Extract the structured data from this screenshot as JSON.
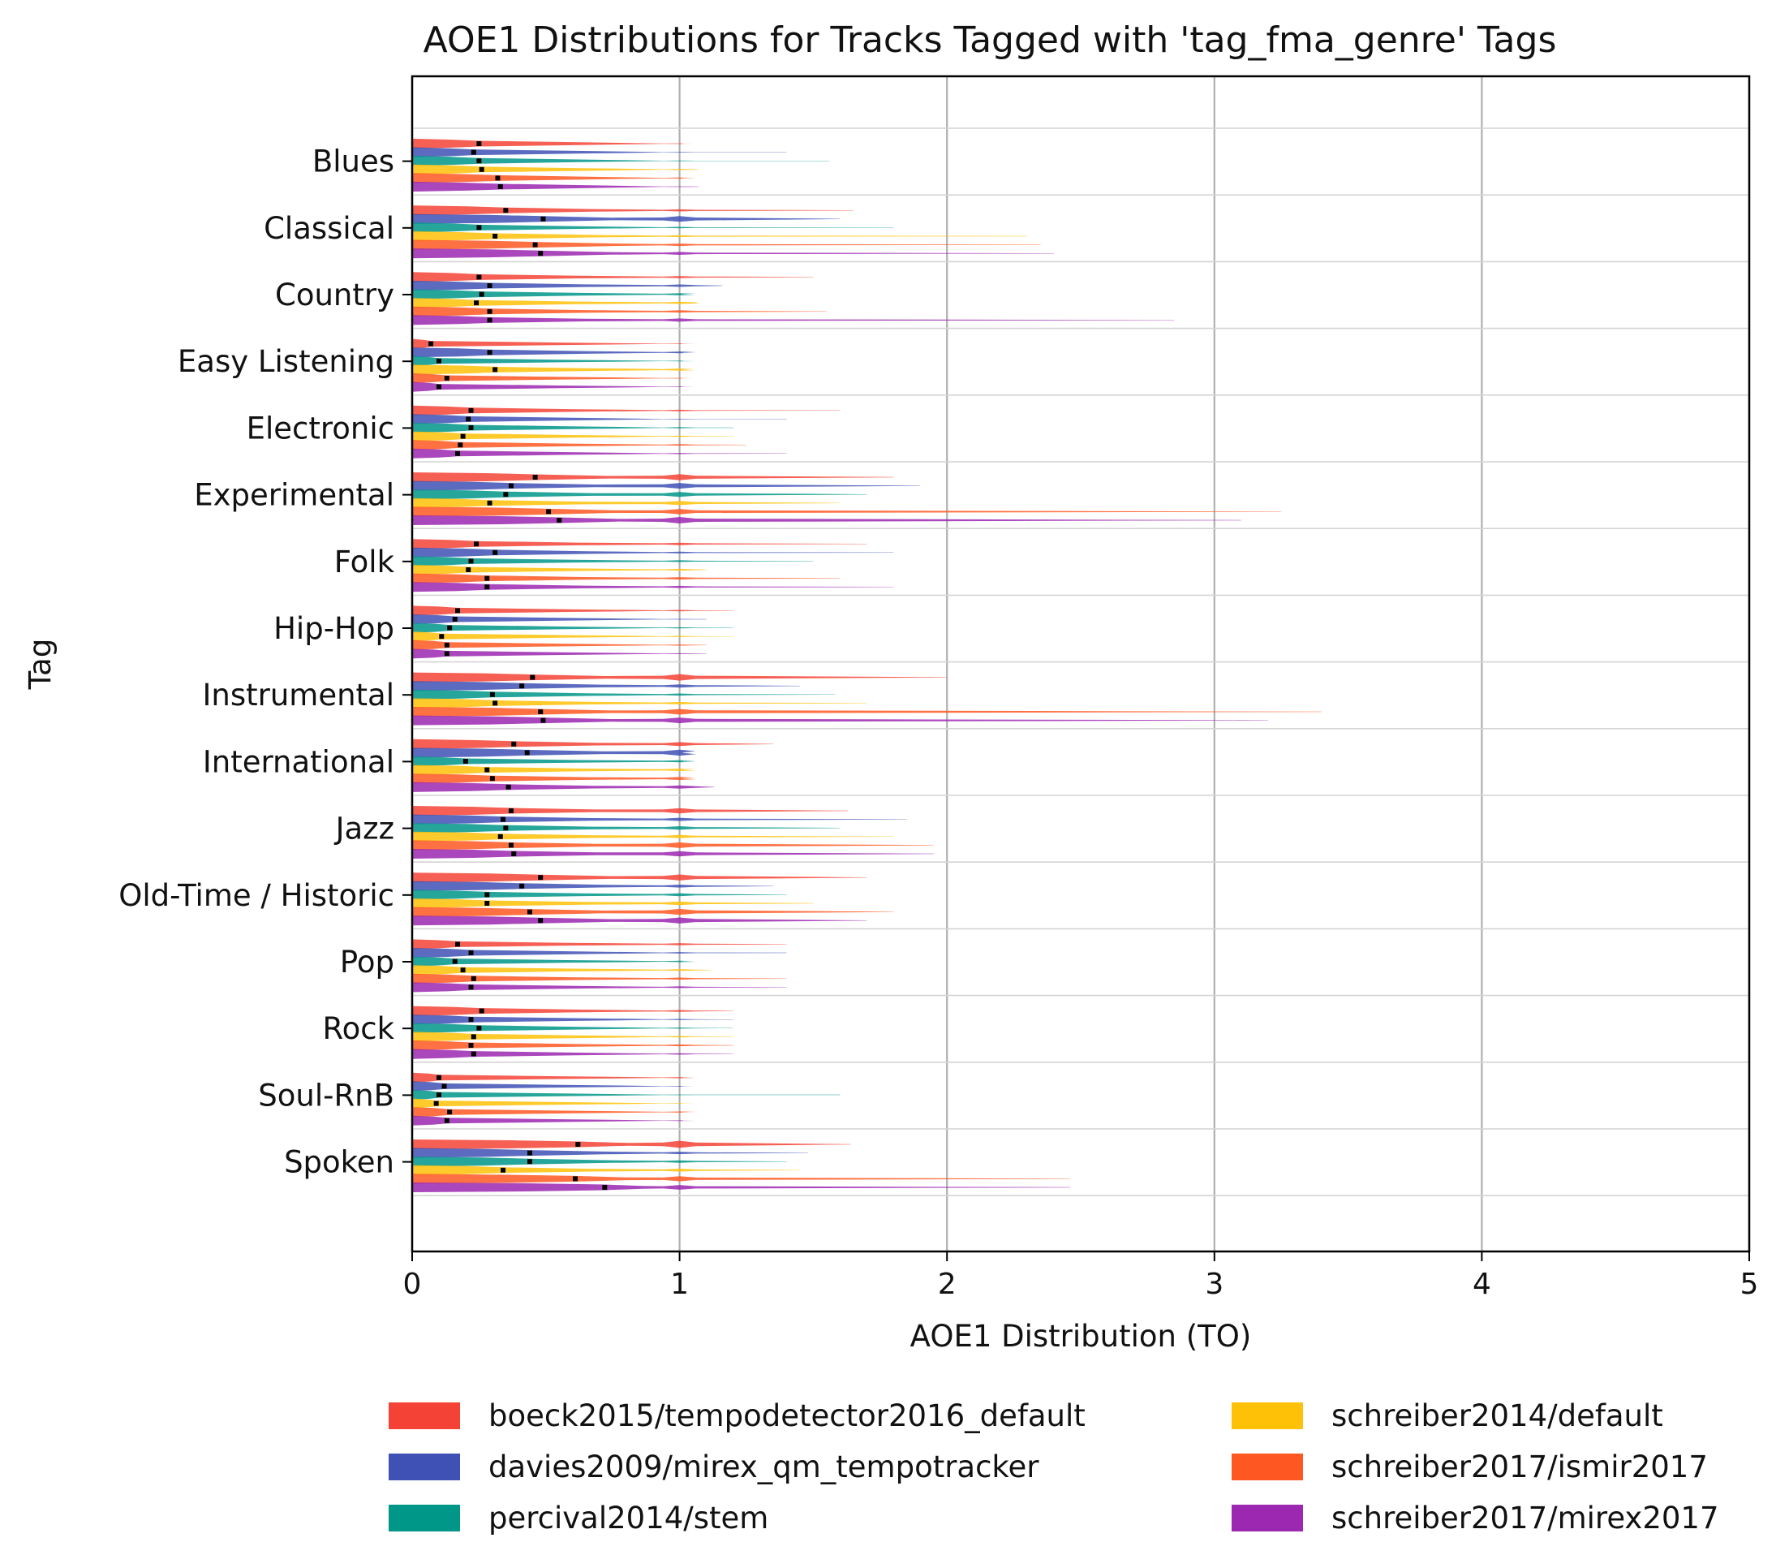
{
  "chart_data": {
    "type": "violin",
    "orientation": "horizontal",
    "title": "AOE1 Distributions for Tracks Tagged with 'tag_fma_genre' Tags",
    "xlabel": "AOE1 Distribution (TO)",
    "ylabel": "Tag",
    "xlim": [
      0,
      5
    ],
    "xticks": [
      "0",
      "1",
      "2",
      "3",
      "4",
      "5"
    ],
    "grid": "x",
    "legend_position": "bottom",
    "series": [
      {
        "name": "boeck2015/tempodetector2016_default",
        "color": "#F44336"
      },
      {
        "name": "davies2009/mirex_qm_tempotracker",
        "color": "#3F51B5"
      },
      {
        "name": "percival2014/stem",
        "color": "#009688"
      },
      {
        "name": "schreiber2014/default",
        "color": "#FFC107"
      },
      {
        "name": "schreiber2017/ismir2017",
        "color": "#FF5722"
      },
      {
        "name": "schreiber2017/mirex2017",
        "color": "#9C27B0"
      }
    ],
    "categories": [
      "Blues",
      "Classical",
      "Country",
      "Easy Listening",
      "Electronic",
      "Experimental",
      "Folk",
      "Hip-Hop",
      "Instrumental",
      "International",
      "Jazz",
      "Old-Time / Historic",
      "Pop",
      "Rock",
      "Soul-RnB",
      "Spoken"
    ],
    "medians": [
      [
        0.25,
        0.23,
        0.25,
        0.26,
        0.32,
        0.33
      ],
      [
        0.35,
        0.49,
        0.25,
        0.31,
        0.46,
        0.48
      ],
      [
        0.25,
        0.29,
        0.26,
        0.24,
        0.29,
        0.29
      ],
      [
        0.07,
        0.29,
        0.1,
        0.31,
        0.13,
        0.1
      ],
      [
        0.22,
        0.21,
        0.22,
        0.19,
        0.18,
        0.17
      ],
      [
        0.46,
        0.37,
        0.35,
        0.29,
        0.51,
        0.55
      ],
      [
        0.24,
        0.31,
        0.22,
        0.21,
        0.28,
        0.28
      ],
      [
        0.17,
        0.16,
        0.14,
        0.11,
        0.13,
        0.13
      ],
      [
        0.45,
        0.41,
        0.3,
        0.31,
        0.48,
        0.49
      ],
      [
        0.38,
        0.43,
        0.2,
        0.28,
        0.3,
        0.36
      ],
      [
        0.37,
        0.34,
        0.35,
        0.33,
        0.37,
        0.38
      ],
      [
        0.48,
        0.41,
        0.28,
        0.28,
        0.44,
        0.48
      ],
      [
        0.17,
        0.22,
        0.16,
        0.19,
        0.23,
        0.22
      ],
      [
        0.26,
        0.22,
        0.25,
        0.23,
        0.22,
        0.23
      ],
      [
        0.1,
        0.12,
        0.1,
        0.09,
        0.14,
        0.13
      ],
      [
        0.62,
        0.44,
        0.44,
        0.34,
        0.61,
        0.72
      ]
    ],
    "maxima": [
      [
        1.0,
        1.4,
        1.56,
        1.07,
        1.03,
        1.07
      ],
      [
        1.65,
        1.6,
        1.8,
        2.3,
        2.35,
        2.4
      ],
      [
        1.5,
        1.16,
        1.04,
        1.07,
        1.55,
        2.85
      ],
      [
        1.0,
        1.03,
        1.0,
        1.0,
        1.0,
        1.0
      ],
      [
        1.6,
        1.4,
        1.2,
        1.2,
        1.25,
        1.4
      ],
      [
        1.8,
        1.9,
        1.7,
        1.6,
        3.25,
        3.1
      ],
      [
        1.7,
        1.8,
        1.5,
        1.1,
        1.6,
        1.8
      ],
      [
        1.2,
        1.1,
        1.2,
        1.2,
        1.1,
        1.1
      ],
      [
        2.0,
        1.45,
        1.58,
        1.7,
        3.4,
        3.2
      ],
      [
        1.35,
        1.05,
        1.0,
        1.04,
        1.04,
        1.13
      ],
      [
        1.63,
        1.85,
        1.6,
        1.8,
        1.95,
        1.95
      ],
      [
        1.7,
        1.35,
        1.4,
        1.5,
        1.8,
        1.7
      ],
      [
        1.4,
        1.4,
        1.05,
        1.12,
        1.4,
        1.4
      ],
      [
        1.2,
        1.2,
        1.2,
        1.2,
        1.2,
        1.2
      ],
      [
        1.05,
        1.05,
        1.6,
        1.0,
        1.0,
        1.0
      ],
      [
        1.64,
        1.48,
        1.4,
        1.45,
        2.46,
        2.46
      ]
    ],
    "density_at_1": [
      [
        0.1,
        0.1,
        0.1,
        0.15,
        0.15,
        0.08
      ],
      [
        0.3,
        0.8,
        0.2,
        0.25,
        0.35,
        0.4
      ],
      [
        0.3,
        0.35,
        0.3,
        0.3,
        0.35,
        0.45
      ],
      [
        0.1,
        0.25,
        0.1,
        0.3,
        0.1,
        0.1
      ],
      [
        0.2,
        0.1,
        0.15,
        0.15,
        0.2,
        0.15
      ],
      [
        0.85,
        0.8,
        0.7,
        0.6,
        0.75,
        0.9
      ],
      [
        0.35,
        0.25,
        0.25,
        0.25,
        0.35,
        0.3
      ],
      [
        0.2,
        0.1,
        0.15,
        0.15,
        0.15,
        0.12
      ],
      [
        0.9,
        0.45,
        0.3,
        0.35,
        0.8,
        0.8
      ],
      [
        0.55,
        0.85,
        0.3,
        0.35,
        0.4,
        0.45
      ],
      [
        0.75,
        0.45,
        0.5,
        0.45,
        0.8,
        0.75
      ],
      [
        0.85,
        0.4,
        0.4,
        0.5,
        0.85,
        0.85
      ],
      [
        0.3,
        0.2,
        0.2,
        0.25,
        0.3,
        0.25
      ],
      [
        0.25,
        0.15,
        0.15,
        0.2,
        0.25,
        0.2
      ],
      [
        0.15,
        0.1,
        0.1,
        0.1,
        0.15,
        0.1
      ],
      [
        1.0,
        0.35,
        0.35,
        0.4,
        0.7,
        0.65
      ]
    ]
  }
}
